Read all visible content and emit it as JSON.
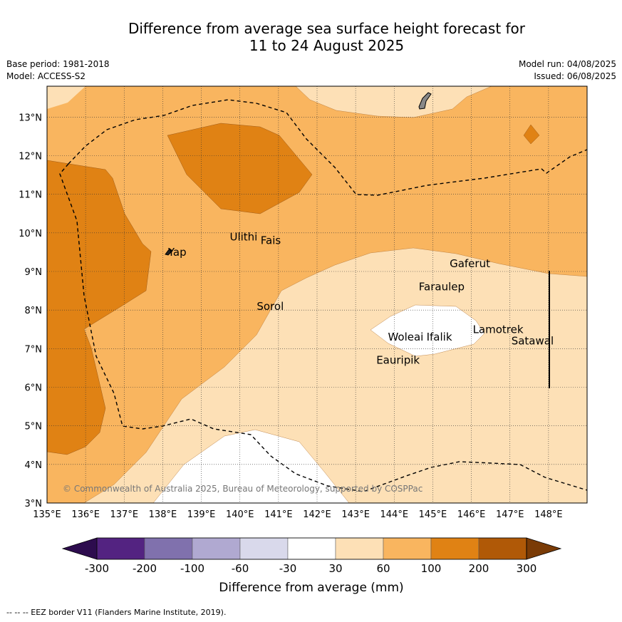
{
  "title_line1": "Difference from average sea surface height forecast for",
  "title_line2": "11 to 24 August 2025",
  "base_period": "Base period: 1981-2018",
  "model": "Model: ACCESS-S2",
  "model_run": "Model run: 04/08/2025",
  "issued": "Issued: 06/08/2025",
  "credit": "© Commonwealth of Australia 2025, Bureau of Meteorology, supported by COSPPac",
  "footnote": "-- -- -- EEZ border V11 (Flanders Marine Institute, 2019).",
  "map": {
    "lon_range": [
      135,
      149
    ],
    "lat_range": [
      3,
      13.8
    ],
    "lon_ticks": [
      "135°E",
      "136°E",
      "137°E",
      "138°E",
      "139°E",
      "140°E",
      "141°E",
      "142°E",
      "143°E",
      "144°E",
      "145°E",
      "146°E",
      "147°E",
      "148°E"
    ],
    "lat_ticks": [
      "3°N",
      "4°N",
      "5°N",
      "6°N",
      "7°N",
      "8°N",
      "9°N",
      "10°N",
      "11°N",
      "12°N",
      "13°N"
    ],
    "places": [
      {
        "name": "Yap",
        "lon": 138.1,
        "lat": 9.5
      },
      {
        "name": "Ulithi",
        "lon": 139.7,
        "lat": 9.9
      },
      {
        "name": "Fais",
        "lon": 140.5,
        "lat": 9.8
      },
      {
        "name": "Sorol",
        "lon": 140.4,
        "lat": 8.1
      },
      {
        "name": "Gaferut",
        "lon": 145.4,
        "lat": 9.2
      },
      {
        "name": "Faraulep",
        "lon": 144.6,
        "lat": 8.6
      },
      {
        "name": "Woleai",
        "lon": 143.8,
        "lat": 7.3
      },
      {
        "name": "Ifalik",
        "lon": 144.8,
        "lat": 7.3
      },
      {
        "name": "Lamotrek",
        "lon": 146.0,
        "lat": 7.5
      },
      {
        "name": "Satawal",
        "lon": 147.0,
        "lat": 7.2
      },
      {
        "name": "Eauripik",
        "lon": 143.5,
        "lat": 6.7
      }
    ]
  },
  "colorbar": {
    "ticks": [
      "-300",
      "-200",
      "-100",
      "-60",
      "-30",
      "30",
      "60",
      "100",
      "200",
      "300"
    ],
    "label": "Difference from average (mm)",
    "colors": [
      "#2d0c4e",
      "#532381",
      "#8071ad",
      "#b0a9d1",
      "#d9d9eb",
      "#ffffff",
      "#fde0b6",
      "#f9b55f",
      "#e08214",
      "#b05907",
      "#7a3b06"
    ],
    "level_colors": {
      "30_60": "#fde0b6",
      "60_100": "#f9b55f",
      "100_200": "#e08214",
      "below_30": "#ffffff"
    }
  }
}
